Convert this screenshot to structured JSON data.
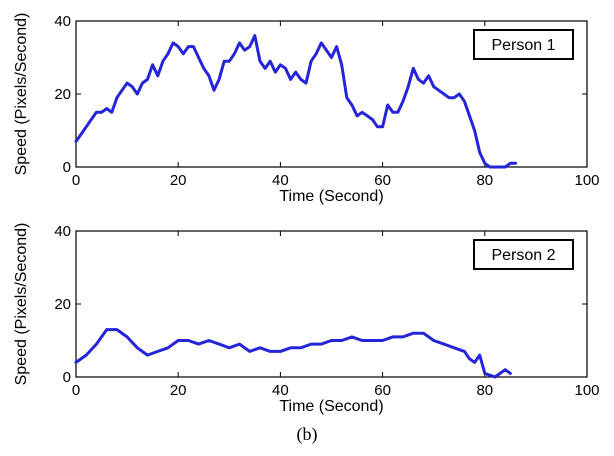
{
  "caption": "(b)",
  "chart_data": [
    {
      "type": "line",
      "xlabel": "Time (Second)",
      "ylabel": "Speed (Pixels/Second)",
      "xlim": [
        0,
        100
      ],
      "ylim": [
        0,
        40
      ],
      "xticks": [
        "0",
        "20",
        "40",
        "60",
        "80",
        "100"
      ],
      "yticks": [
        "0",
        "20",
        "40"
      ],
      "legend": "top-right",
      "grid": false,
      "color": "#2424d8",
      "series": [
        {
          "name": "Person 1",
          "x": [
            0,
            1,
            2,
            3,
            4,
            5,
            6,
            7,
            8,
            9,
            10,
            11,
            12,
            13,
            14,
            15,
            16,
            17,
            18,
            19,
            20,
            21,
            22,
            23,
            24,
            25,
            26,
            27,
            28,
            29,
            30,
            31,
            32,
            33,
            34,
            35,
            36,
            37,
            38,
            39,
            40,
            41,
            42,
            43,
            44,
            45,
            46,
            47,
            48,
            49,
            50,
            51,
            52,
            53,
            54,
            55,
            56,
            57,
            58,
            59,
            60,
            61,
            62,
            63,
            64,
            65,
            66,
            67,
            68,
            69,
            70,
            71,
            72,
            73,
            74,
            75,
            76,
            77,
            78,
            79,
            80,
            81,
            82,
            83,
            84,
            85,
            86
          ],
          "y": [
            7,
            9,
            11,
            13,
            15,
            15,
            16,
            15,
            19,
            21,
            23,
            22,
            20,
            23,
            24,
            28,
            25,
            29,
            31,
            34,
            33,
            31,
            33,
            33,
            30,
            27,
            25,
            21,
            24,
            29,
            29,
            31,
            34,
            32,
            33,
            36,
            29,
            27,
            29,
            26,
            28,
            27,
            24,
            26,
            24,
            23,
            29,
            31,
            34,
            32,
            30,
            33,
            28,
            19,
            17,
            14,
            15,
            14,
            13,
            11,
            11,
            17,
            15,
            15,
            18,
            22,
            27,
            24,
            23,
            25,
            22,
            21,
            20,
            19,
            19,
            20,
            18,
            14,
            10,
            4,
            1,
            0,
            0,
            0,
            0,
            1,
            1
          ]
        }
      ]
    },
    {
      "type": "line",
      "xlabel": "Time (Second)",
      "ylabel": "Speed (Pixels/Second)",
      "xlim": [
        0,
        100
      ],
      "ylim": [
        0,
        40
      ],
      "xticks": [
        "0",
        "20",
        "40",
        "60",
        "80",
        "100"
      ],
      "yticks": [
        "0",
        "20",
        "40"
      ],
      "legend": "top-right",
      "grid": false,
      "color": "#2424d8",
      "series": [
        {
          "name": "Person 2",
          "x": [
            0,
            2,
            4,
            6,
            8,
            10,
            12,
            14,
            16,
            18,
            20,
            22,
            24,
            26,
            28,
            30,
            32,
            34,
            36,
            38,
            40,
            42,
            44,
            46,
            48,
            50,
            52,
            54,
            56,
            58,
            60,
            62,
            64,
            66,
            68,
            70,
            72,
            74,
            76,
            77,
            78,
            79,
            80,
            82,
            84,
            85
          ],
          "y": [
            4,
            6,
            9,
            13,
            13,
            11,
            8,
            6,
            7,
            8,
            10,
            10,
            9,
            10,
            9,
            8,
            9,
            7,
            8,
            7,
            7,
            8,
            8,
            9,
            9,
            10,
            10,
            11,
            10,
            10,
            10,
            11,
            11,
            12,
            12,
            10,
            9,
            8,
            7,
            5,
            4,
            6,
            1,
            0,
            2,
            1
          ]
        }
      ]
    }
  ]
}
